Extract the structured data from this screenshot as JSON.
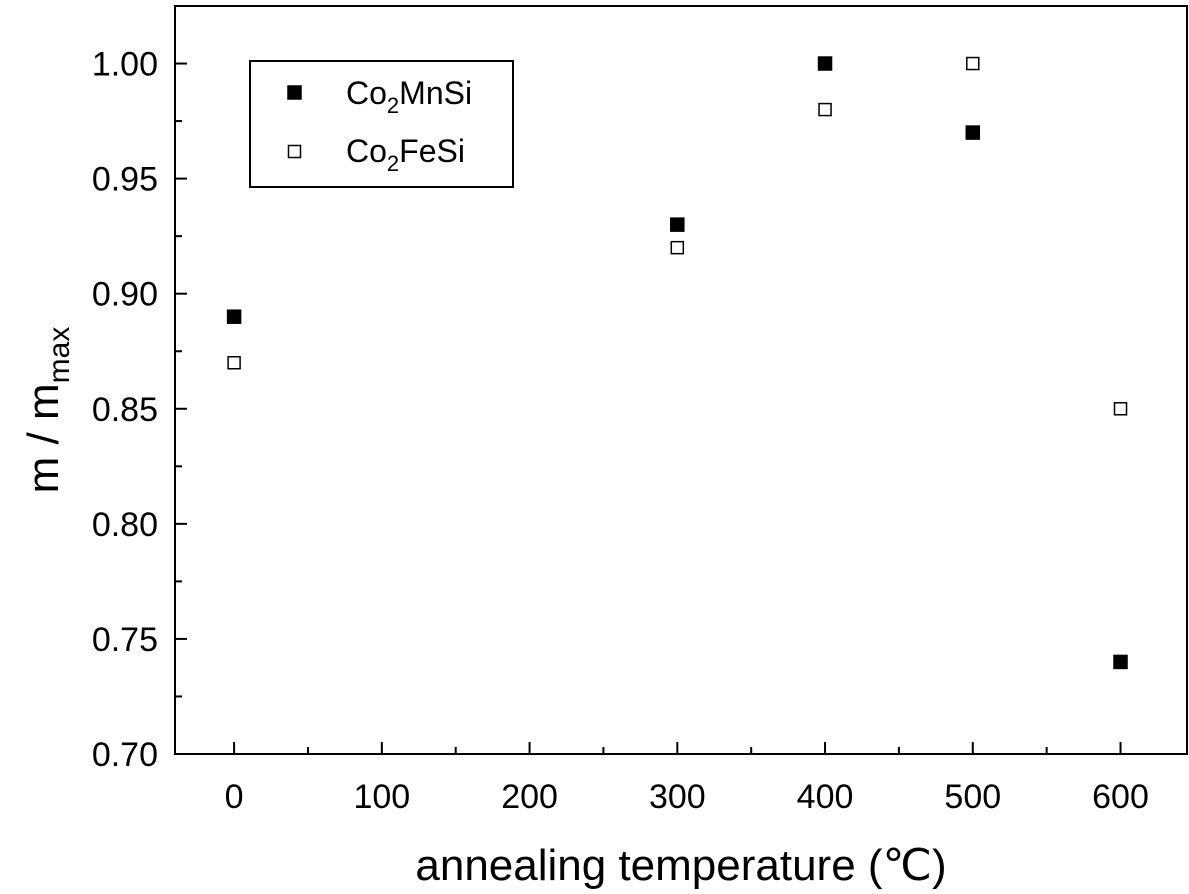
{
  "chart_data": {
    "type": "scatter",
    "xlabel": "annealing temperature (℃)",
    "ylabel_main": "m / m",
    "ylabel_sub": "max",
    "xlim": [
      -40,
      645
    ],
    "ylim": [
      0.7,
      1.025
    ],
    "xticks": [
      0,
      100,
      200,
      300,
      400,
      500,
      600
    ],
    "xtick_labels": [
      "0",
      "100",
      "200",
      "300",
      "400",
      "500",
      "600"
    ],
    "yticks": [
      0.7,
      0.75,
      0.8,
      0.85,
      0.9,
      0.95,
      1.0
    ],
    "ytick_labels": [
      "0.70",
      "0.75",
      "0.80",
      "0.85",
      "0.90",
      "0.95",
      "1.00"
    ],
    "grid": false,
    "legend_position": "top-left",
    "series": [
      {
        "name_main": "Co",
        "name_sub": "2",
        "name_rest": "MnSi",
        "marker": "filled-square",
        "color": "#000000",
        "x": [
          0,
          300,
          400,
          500,
          600
        ],
        "y": [
          0.89,
          0.93,
          1.0,
          0.97,
          0.74
        ]
      },
      {
        "name_main": "Co",
        "name_sub": "2",
        "name_rest": "FeSi",
        "marker": "open-square",
        "color": "#000000",
        "x": [
          0,
          300,
          400,
          500,
          600
        ],
        "y": [
          0.87,
          0.92,
          0.98,
          1.0,
          0.85
        ]
      }
    ]
  }
}
